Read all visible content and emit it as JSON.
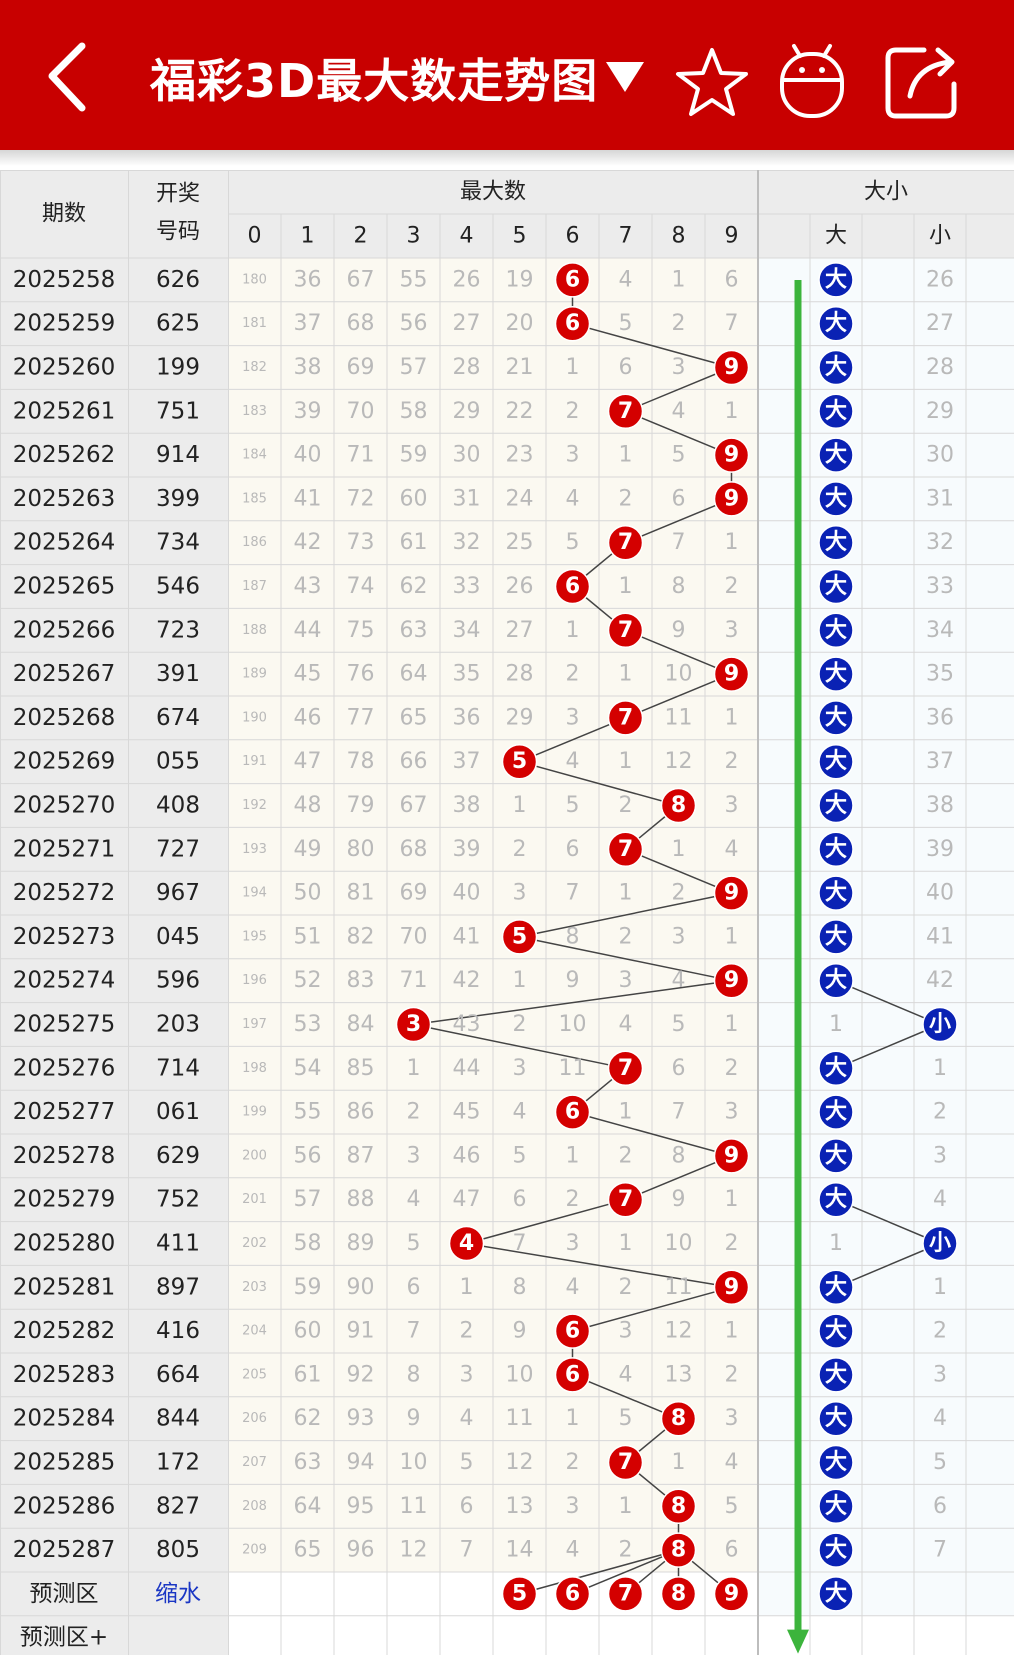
{
  "header": {
    "title": "福彩3D最大数走势图",
    "back_icon": "chevron-left-icon",
    "dropdown_icon": "triangle-down-icon",
    "favorite_icon": "star-icon",
    "robot_icon": "robot-icon",
    "share_icon": "share-icon",
    "bar_color": "#c80000"
  },
  "table": {
    "col_period": "期数",
    "col_draw_line1": "开奖",
    "col_draw_line2": "号码",
    "group_max": "最大数",
    "group_size": "大小",
    "digits": [
      "0",
      "1",
      "2",
      "3",
      "4",
      "5",
      "6",
      "7",
      "8",
      "9"
    ],
    "size_labels": [
      "大",
      "",
      "小"
    ],
    "ball_color": "#d40000",
    "size_ball_color": "#0a22b4",
    "rows": [
      {
        "period": "2025258",
        "draw": "626",
        "max": 6,
        "size": "大",
        "miss": [
          "180",
          "36",
          "67",
          "55",
          "26",
          "19",
          "",
          "4",
          "1",
          "6"
        ],
        "big_miss": "",
        "small_miss": "26"
      },
      {
        "period": "2025259",
        "draw": "625",
        "max": 6,
        "size": "大",
        "miss": [
          "181",
          "37",
          "68",
          "56",
          "27",
          "20",
          "",
          "5",
          "2",
          "7"
        ],
        "big_miss": "",
        "small_miss": "27"
      },
      {
        "period": "2025260",
        "draw": "199",
        "max": 9,
        "size": "大",
        "miss": [
          "182",
          "38",
          "69",
          "57",
          "28",
          "21",
          "1",
          "6",
          "3",
          ""
        ],
        "big_miss": "",
        "small_miss": "28"
      },
      {
        "period": "2025261",
        "draw": "751",
        "max": 7,
        "size": "大",
        "miss": [
          "183",
          "39",
          "70",
          "58",
          "29",
          "22",
          "2",
          "",
          "4",
          "1"
        ],
        "big_miss": "",
        "small_miss": "29"
      },
      {
        "period": "2025262",
        "draw": "914",
        "max": 9,
        "size": "大",
        "miss": [
          "184",
          "40",
          "71",
          "59",
          "30",
          "23",
          "3",
          "1",
          "5",
          ""
        ],
        "big_miss": "",
        "small_miss": "30"
      },
      {
        "period": "2025263",
        "draw": "399",
        "max": 9,
        "size": "大",
        "miss": [
          "185",
          "41",
          "72",
          "60",
          "31",
          "24",
          "4",
          "2",
          "6",
          ""
        ],
        "big_miss": "",
        "small_miss": "31"
      },
      {
        "period": "2025264",
        "draw": "734",
        "max": 7,
        "size": "大",
        "miss": [
          "186",
          "42",
          "73",
          "61",
          "32",
          "25",
          "5",
          "",
          "7",
          "1"
        ],
        "big_miss": "",
        "small_miss": "32"
      },
      {
        "period": "2025265",
        "draw": "546",
        "max": 6,
        "size": "大",
        "miss": [
          "187",
          "43",
          "74",
          "62",
          "33",
          "26",
          "",
          "1",
          "8",
          "2"
        ],
        "big_miss": "",
        "small_miss": "33"
      },
      {
        "period": "2025266",
        "draw": "723",
        "max": 7,
        "size": "大",
        "miss": [
          "188",
          "44",
          "75",
          "63",
          "34",
          "27",
          "1",
          "",
          "9",
          "3"
        ],
        "big_miss": "",
        "small_miss": "34"
      },
      {
        "period": "2025267",
        "draw": "391",
        "max": 9,
        "size": "大",
        "miss": [
          "189",
          "45",
          "76",
          "64",
          "35",
          "28",
          "2",
          "1",
          "10",
          ""
        ],
        "big_miss": "",
        "small_miss": "35"
      },
      {
        "period": "2025268",
        "draw": "674",
        "max": 7,
        "size": "大",
        "miss": [
          "190",
          "46",
          "77",
          "65",
          "36",
          "29",
          "3",
          "",
          "11",
          "1"
        ],
        "big_miss": "",
        "small_miss": "36"
      },
      {
        "period": "2025269",
        "draw": "055",
        "max": 5,
        "size": "大",
        "miss": [
          "191",
          "47",
          "78",
          "66",
          "37",
          "",
          "4",
          "1",
          "12",
          "2"
        ],
        "big_miss": "",
        "small_miss": "37"
      },
      {
        "period": "2025270",
        "draw": "408",
        "max": 8,
        "size": "大",
        "miss": [
          "192",
          "48",
          "79",
          "67",
          "38",
          "1",
          "5",
          "2",
          "",
          "3"
        ],
        "big_miss": "",
        "small_miss": "38"
      },
      {
        "period": "2025271",
        "draw": "727",
        "max": 7,
        "size": "大",
        "miss": [
          "193",
          "49",
          "80",
          "68",
          "39",
          "2",
          "6",
          "",
          "1",
          "4"
        ],
        "big_miss": "",
        "small_miss": "39"
      },
      {
        "period": "2025272",
        "draw": "967",
        "max": 9,
        "size": "大",
        "miss": [
          "194",
          "50",
          "81",
          "69",
          "40",
          "3",
          "7",
          "1",
          "2",
          ""
        ],
        "big_miss": "",
        "small_miss": "40"
      },
      {
        "period": "2025273",
        "draw": "045",
        "max": 5,
        "size": "大",
        "miss": [
          "195",
          "51",
          "82",
          "70",
          "41",
          "",
          "8",
          "2",
          "3",
          "1"
        ],
        "big_miss": "",
        "small_miss": "41"
      },
      {
        "period": "2025274",
        "draw": "596",
        "max": 9,
        "size": "大",
        "miss": [
          "196",
          "52",
          "83",
          "71",
          "42",
          "1",
          "9",
          "3",
          "4",
          ""
        ],
        "big_miss": "",
        "small_miss": "42"
      },
      {
        "period": "2025275",
        "draw": "203",
        "max": 3,
        "size": "小",
        "miss": [
          "197",
          "53",
          "84",
          "",
          "43",
          "2",
          "10",
          "4",
          "5",
          "1"
        ],
        "big_miss": "1",
        "small_miss": ""
      },
      {
        "period": "2025276",
        "draw": "714",
        "max": 7,
        "size": "大",
        "miss": [
          "198",
          "54",
          "85",
          "1",
          "44",
          "3",
          "11",
          "",
          "6",
          "2"
        ],
        "big_miss": "",
        "small_miss": "1"
      },
      {
        "period": "2025277",
        "draw": "061",
        "max": 6,
        "size": "大",
        "miss": [
          "199",
          "55",
          "86",
          "2",
          "45",
          "4",
          "",
          "1",
          "7",
          "3"
        ],
        "big_miss": "",
        "small_miss": "2"
      },
      {
        "period": "2025278",
        "draw": "629",
        "max": 9,
        "size": "大",
        "miss": [
          "200",
          "56",
          "87",
          "3",
          "46",
          "5",
          "1",
          "2",
          "8",
          ""
        ],
        "big_miss": "",
        "small_miss": "3"
      },
      {
        "period": "2025279",
        "draw": "752",
        "max": 7,
        "size": "大",
        "miss": [
          "201",
          "57",
          "88",
          "4",
          "47",
          "6",
          "2",
          "",
          "9",
          "1"
        ],
        "big_miss": "",
        "small_miss": "4"
      },
      {
        "period": "2025280",
        "draw": "411",
        "max": 4,
        "size": "小",
        "miss": [
          "202",
          "58",
          "89",
          "5",
          "",
          "7",
          "3",
          "1",
          "10",
          "2"
        ],
        "big_miss": "1",
        "small_miss": ""
      },
      {
        "period": "2025281",
        "draw": "897",
        "max": 9,
        "size": "大",
        "miss": [
          "203",
          "59",
          "90",
          "6",
          "1",
          "8",
          "4",
          "2",
          "11",
          ""
        ],
        "big_miss": "",
        "small_miss": "1"
      },
      {
        "period": "2025282",
        "draw": "416",
        "max": 6,
        "size": "大",
        "miss": [
          "204",
          "60",
          "91",
          "7",
          "2",
          "9",
          "",
          "3",
          "12",
          "1"
        ],
        "big_miss": "",
        "small_miss": "2"
      },
      {
        "period": "2025283",
        "draw": "664",
        "max": 6,
        "size": "大",
        "miss": [
          "205",
          "61",
          "92",
          "8",
          "3",
          "10",
          "",
          "4",
          "13",
          "2"
        ],
        "big_miss": "",
        "small_miss": "3"
      },
      {
        "period": "2025284",
        "draw": "844",
        "max": 8,
        "size": "大",
        "miss": [
          "206",
          "62",
          "93",
          "9",
          "4",
          "11",
          "1",
          "5",
          "",
          "3"
        ],
        "big_miss": "",
        "small_miss": "4"
      },
      {
        "period": "2025285",
        "draw": "172",
        "max": 7,
        "size": "大",
        "miss": [
          "207",
          "63",
          "94",
          "10",
          "5",
          "12",
          "2",
          "",
          "1",
          "4"
        ],
        "big_miss": "",
        "small_miss": "5"
      },
      {
        "period": "2025286",
        "draw": "827",
        "max": 8,
        "size": "大",
        "miss": [
          "208",
          "64",
          "95",
          "11",
          "6",
          "13",
          "3",
          "1",
          "",
          "5"
        ],
        "big_miss": "",
        "small_miss": "6"
      },
      {
        "period": "2025287",
        "draw": "805",
        "max": 8,
        "size": "大",
        "miss": [
          "209",
          "65",
          "96",
          "12",
          "7",
          "14",
          "4",
          "2",
          "",
          "6"
        ],
        "big_miss": "",
        "small_miss": "7"
      }
    ],
    "predict_row": {
      "label": "预测区",
      "link": "缩水",
      "balls": [
        "5",
        "6",
        "7",
        "8",
        "9"
      ],
      "size": "大"
    },
    "predict_plus_row": {
      "label": "预测区+"
    },
    "trend_arrow_color": "#3cb43c"
  }
}
